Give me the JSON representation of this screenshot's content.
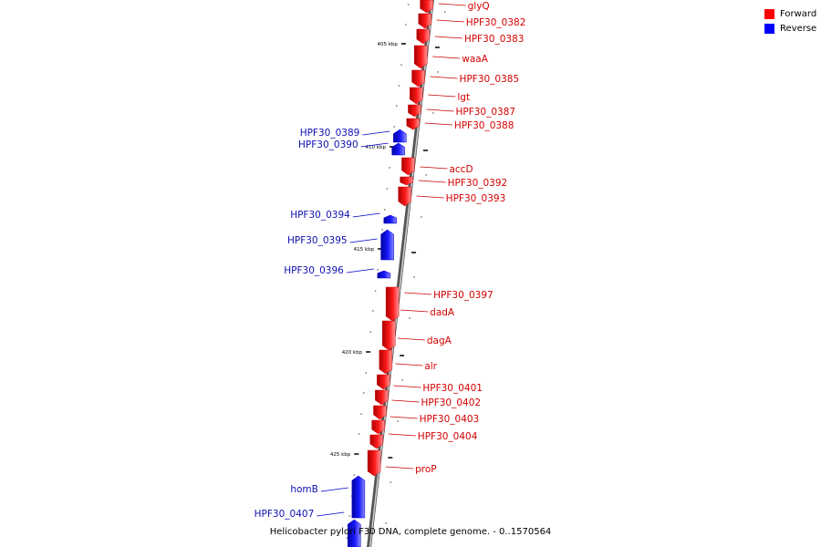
{
  "legend": {
    "forward_label": "Forward",
    "reverse_label": "Reverse",
    "forward_color": "#ff0000",
    "reverse_color": "#0000ff"
  },
  "caption": "Helicobacter pylori F30 DNA, complete genome. - 0..1570564",
  "ruler": {
    "unit_suffix": "kbp",
    "major_ticks": [
      405,
      410,
      415,
      420,
      425
    ]
  },
  "genes": [
    {
      "name": "glyQ",
      "strand": "forward"
    },
    {
      "name": "HPF30_0382",
      "strand": "forward"
    },
    {
      "name": "HPF30_0383",
      "strand": "forward"
    },
    {
      "name": "waaA",
      "strand": "forward"
    },
    {
      "name": "HPF30_0385",
      "strand": "forward"
    },
    {
      "name": "lgt",
      "strand": "forward"
    },
    {
      "name": "HPF30_0387",
      "strand": "forward"
    },
    {
      "name": "HPF30_0388",
      "strand": "forward"
    },
    {
      "name": "HPF30_0389",
      "strand": "reverse"
    },
    {
      "name": "HPF30_0390",
      "strand": "reverse"
    },
    {
      "name": "accD",
      "strand": "forward"
    },
    {
      "name": "HPF30_0392",
      "strand": "forward"
    },
    {
      "name": "HPF30_0393",
      "strand": "forward"
    },
    {
      "name": "HPF30_0394",
      "strand": "reverse"
    },
    {
      "name": "HPF30_0395",
      "strand": "reverse"
    },
    {
      "name": "HPF30_0396",
      "strand": "reverse"
    },
    {
      "name": "HPF30_0397",
      "strand": "forward"
    },
    {
      "name": "dadA",
      "strand": "forward"
    },
    {
      "name": "dagA",
      "strand": "forward"
    },
    {
      "name": "alr",
      "strand": "forward"
    },
    {
      "name": "HPF30_0401",
      "strand": "forward"
    },
    {
      "name": "HPF30_0402",
      "strand": "forward"
    },
    {
      "name": "HPF30_0403",
      "strand": "forward"
    },
    {
      "name": "HPF30_0404",
      "strand": "forward"
    },
    {
      "name": "proP",
      "strand": "forward"
    },
    {
      "name": "homB",
      "strand": "reverse"
    },
    {
      "name": "HPF30_0407",
      "strand": "reverse"
    }
  ]
}
